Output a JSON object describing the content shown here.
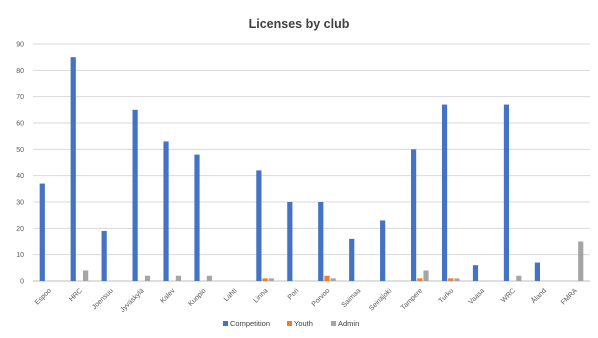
{
  "chart_data": {
    "type": "bar",
    "title": "Licenses by club",
    "categories": [
      "Espoo",
      "HRC",
      "Joensuu",
      "Jyväskylä",
      "Kalev",
      "Kuopio",
      "Lahti",
      "Linna",
      "Pori",
      "Porvoo",
      "Saimaa",
      "Seinäjoki",
      "Tampere",
      "Turku",
      "Vaasa",
      "WRC",
      "Åland",
      "FMRA"
    ],
    "series": [
      {
        "name": "Competition",
        "color": "#4472C4",
        "values": [
          37,
          85,
          19,
          65,
          53,
          48,
          0,
          42,
          30,
          30,
          16,
          23,
          50,
          67,
          6,
          67,
          7,
          0
        ]
      },
      {
        "name": "Youth",
        "color": "#ED7D31",
        "values": [
          0,
          0,
          0,
          0,
          0,
          0,
          0,
          1,
          0,
          2,
          0,
          0,
          1,
          1,
          0,
          0,
          0,
          0
        ]
      },
      {
        "name": "Admin",
        "color": "#A5A5A5",
        "values": [
          0,
          4,
          0,
          2,
          2,
          2,
          0,
          1,
          0,
          1,
          0,
          0,
          4,
          1,
          0,
          2,
          0,
          15
        ]
      }
    ],
    "xlabel": "",
    "ylabel": "",
    "ylim": [
      0,
      90
    ],
    "yticks": [
      0,
      10,
      20,
      30,
      40,
      50,
      60,
      70,
      80,
      90
    ],
    "grid": true,
    "legend_position": "bottom"
  }
}
